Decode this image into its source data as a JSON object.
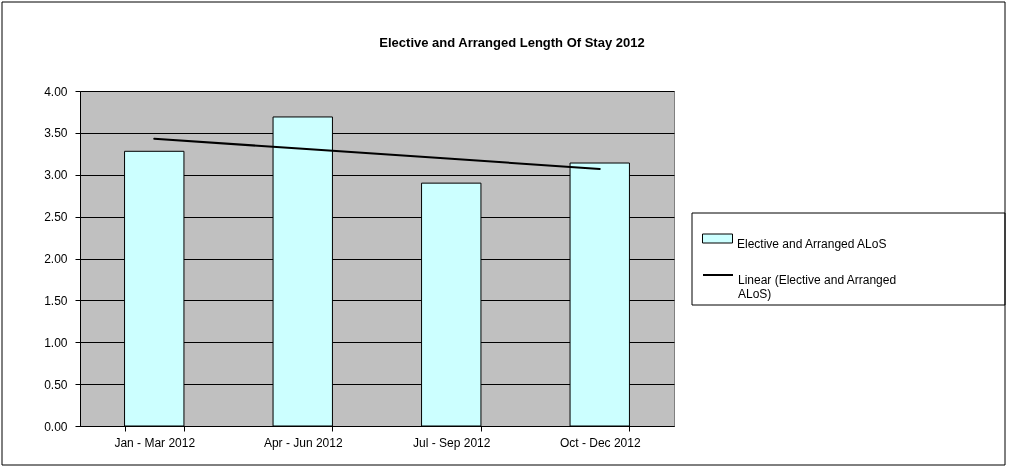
{
  "chart_data": {
    "type": "bar",
    "title": "Elective and Arranged Length Of Stay 2012",
    "categories": [
      "Jan - Mar 2012",
      "Apr - Jun 2012",
      "Jul - Sep 2012",
      "Oct - Dec 2012"
    ],
    "series": [
      {
        "name": "Elective and Arranged ALoS",
        "color": "#ccffff",
        "values": [
          3.28,
          3.69,
          2.9,
          3.14
        ]
      },
      {
        "name": "Linear (Elective and Arranged ALoS)",
        "type": "line",
        "color": "#000000",
        "values": [
          3.43,
          3.31,
          3.19,
          3.07
        ]
      }
    ],
    "ylim": [
      0,
      4
    ],
    "yticks": [
      {
        "value": 0,
        "label": "0.00"
      },
      {
        "value": 0.5,
        "label": "0.50"
      },
      {
        "value": 1,
        "label": "1.00"
      },
      {
        "value": 1.5,
        "label": "1.50"
      },
      {
        "value": 2,
        "label": "2.00"
      },
      {
        "value": 2.5,
        "label": "2.50"
      },
      {
        "value": 3,
        "label": "3.00"
      },
      {
        "value": 3.5,
        "label": "3.50"
      },
      {
        "value": 4,
        "label": "4.00"
      }
    ],
    "grid": "y",
    "legend": "right"
  }
}
